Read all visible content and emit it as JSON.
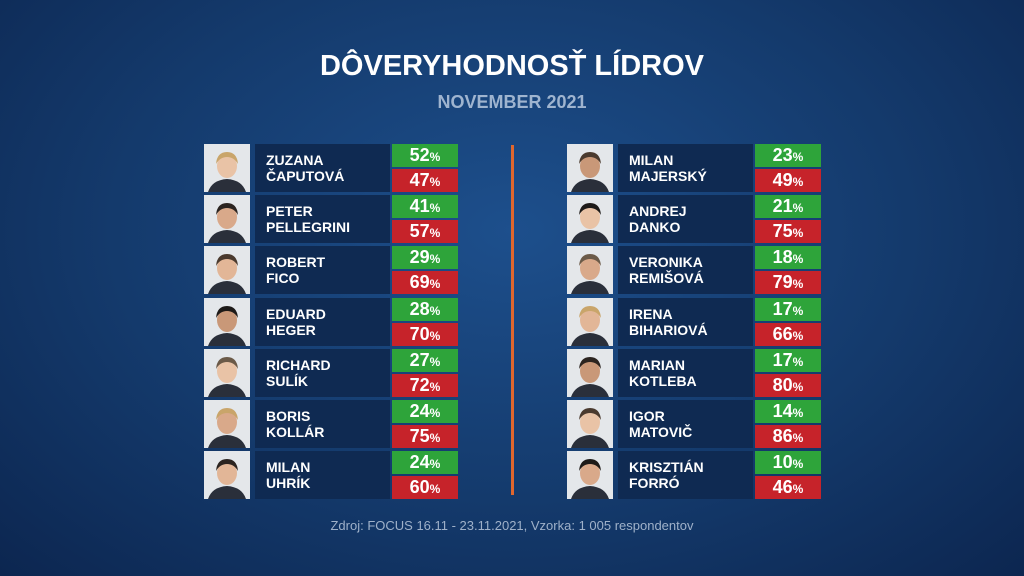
{
  "title": "DÔVERYHODNOSŤ LÍDROV",
  "subtitle": "NOVEMBER 2021",
  "unit": "%",
  "columns": [
    [
      {
        "first": "ZUZANA",
        "last": "ČAPUTOVÁ",
        "trust": 52,
        "distrust": 47
      },
      {
        "first": "PETER",
        "last": "PELLEGRINI",
        "trust": 41,
        "distrust": 57
      },
      {
        "first": "ROBERT",
        "last": "FICO",
        "trust": 29,
        "distrust": 69
      },
      {
        "first": "EDUARD",
        "last": "HEGER",
        "trust": 28,
        "distrust": 70
      },
      {
        "first": "RICHARD",
        "last": "SULÍK",
        "trust": 27,
        "distrust": 72
      },
      {
        "first": "BORIS",
        "last": "KOLLÁR",
        "trust": 24,
        "distrust": 75
      },
      {
        "first": "MILAN",
        "last": "UHRÍK",
        "trust": 24,
        "distrust": 60
      }
    ],
    [
      {
        "first": "MILAN",
        "last": "MAJERSKÝ",
        "trust": 23,
        "distrust": 49
      },
      {
        "first": "ANDREJ",
        "last": "DANKO",
        "trust": 21,
        "distrust": 75
      },
      {
        "first": "VERONIKA",
        "last": "REMIŠOVÁ",
        "trust": 18,
        "distrust": 79
      },
      {
        "first": "IRENA",
        "last": "BIHARIOVÁ",
        "trust": 17,
        "distrust": 66
      },
      {
        "first": "MARIAN",
        "last": "KOTLEBA",
        "trust": 17,
        "distrust": 80
      },
      {
        "first": "IGOR",
        "last": "MATOVIČ",
        "trust": 14,
        "distrust": 86
      },
      {
        "first": "KRISZTIÁN",
        "last": "FORRÓ",
        "trust": 10,
        "distrust": 46
      }
    ]
  ],
  "source": "Zdroj: FOCUS 16.11 - 23.11.2021, Vzorka: 1 005 respondentov"
}
